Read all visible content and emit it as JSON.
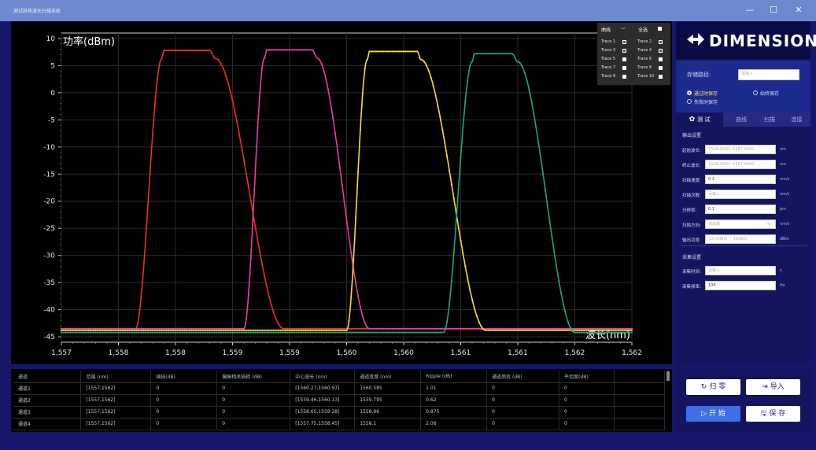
{
  "window": {
    "title": "测试科技波长扫描系统",
    "minimize_glyph": "—",
    "maximize_glyph": "☐",
    "close_glyph": "✕"
  },
  "chart_data": {
    "type": "line",
    "ylabel": "功率(dBm)",
    "xlabel": "波长(nm)",
    "xlim": [
      1557,
      1562
    ],
    "ylim": [
      -46,
      11
    ],
    "x_ticks": [
      1557,
      1557.5,
      1558,
      1558.5,
      1559,
      1559.5,
      1560,
      1560.5,
      1561,
      1561.5,
      1562
    ],
    "x_tick_labels": [
      "1,557",
      "1,558",
      "1,558",
      "1,559",
      "1,559",
      "1,560",
      "1,560",
      "1,561",
      "1,561",
      "1,562",
      "1,562"
    ],
    "y_ticks": [
      10,
      5,
      0,
      -5,
      -10,
      -15,
      -20,
      -25,
      -30,
      -35,
      -40,
      -45
    ],
    "y_tick_labels": [
      "10",
      "5",
      "0",
      "-5",
      "-10",
      "-15",
      "-20",
      "-25",
      "-30",
      "-35",
      "-40",
      "-45"
    ],
    "grid": true,
    "series": [
      {
        "color": "#e8302a",
        "peak": 7.8,
        "floor": -43.5,
        "rise_start": 1557.65,
        "rise_end": 1557.88,
        "top_start": 1557.9,
        "top_end": 1558.3,
        "fall_start": 1558.35,
        "fall_end": 1558.95
      },
      {
        "color": "#e83da0",
        "peak": 7.9,
        "floor": -43.5,
        "rise_start": 1558.6,
        "rise_end": 1558.78,
        "top_start": 1558.8,
        "top_end": 1559.2,
        "fall_start": 1559.24,
        "fall_end": 1559.7
      },
      {
        "color": "#f1de32",
        "peak": 7.6,
        "floor": -43.8,
        "rise_start": 1559.5,
        "rise_end": 1559.68,
        "top_start": 1559.7,
        "top_end": 1560.12,
        "fall_start": 1560.15,
        "fall_end": 1560.72
      },
      {
        "color": "#1fa57a",
        "peak": 7.2,
        "floor": -44.2,
        "rise_start": 1560.35,
        "rise_end": 1560.6,
        "top_start": 1560.62,
        "top_end": 1560.95,
        "fall_start": 1561.0,
        "fall_end": 1561.5
      }
    ]
  },
  "trace_legend": {
    "header_left": "曲线",
    "header_chevron": "﹀",
    "header_right": "全选",
    "traces": [
      {
        "label": "Trace 1",
        "checked": true
      },
      {
        "label": "Trace 2",
        "checked": true
      },
      {
        "label": "Trace 3",
        "checked": true
      },
      {
        "label": "Trace 4",
        "checked": true
      },
      {
        "label": "Trace 5",
        "checked": false
      },
      {
        "label": "Trace 6",
        "checked": false
      },
      {
        "label": "Trace 7",
        "checked": false
      },
      {
        "label": "Trace 8",
        "checked": false
      },
      {
        "label": "Trace 9",
        "checked": false
      },
      {
        "label": "Trace 10",
        "checked": false
      }
    ]
  },
  "brand": {
    "name": "DIMENSION"
  },
  "storage": {
    "path_label": "存储路径:",
    "path_placeholder": "请输入",
    "radio_pass": "通过时保存",
    "radio_always": "始终保存",
    "radio_fail": "失败时保存",
    "selected": "pass"
  },
  "tabs": [
    "测 试",
    "曲线",
    "扫描",
    "连接"
  ],
  "output_settings": {
    "title": "输出设置",
    "rows": [
      {
        "label": "起始波长:",
        "value": "",
        "placeholder": "1528.0000~1567.0000",
        "unit": "nm"
      },
      {
        "label": "终止波长:",
        "value": "",
        "placeholder": "1528.0000~1567.0000",
        "unit": "nm"
      },
      {
        "label": "扫描速度:",
        "value": "0.1",
        "placeholder": "",
        "unit": "nm/s"
      },
      {
        "label": "扫描次数:",
        "value": "",
        "placeholder": "请输入",
        "unit": "nm/s"
      },
      {
        "label": "分辨率:",
        "value": "0.1",
        "placeholder": "",
        "unit": "pm"
      },
      {
        "label": "扫描方向:",
        "value": "",
        "placeholder": "请选择",
        "unit": "nm/s"
      },
      {
        "label": "输出功率:",
        "value": "",
        "placeholder": "-10.0dBm ~ 10dBm",
        "unit": "dBm"
      }
    ]
  },
  "acquisition_settings": {
    "title": "采集设置",
    "rows": [
      {
        "label": "采集时间:",
        "value": "",
        "placeholder": "请输入",
        "unit": "s"
      },
      {
        "label": "采集频率:",
        "value": "10K",
        "placeholder": "",
        "unit": "Hz"
      }
    ]
  },
  "table": {
    "headers": [
      "通道",
      "范围 (nm)",
      "插损(dB)",
      "偏振相关损耗 (dB)",
      "中心波长 (nm)",
      "通道宽度 (nm)",
      "Ripple (dB)",
      "通道串扰 (dB)",
      "平坦度(dB)",
      ""
    ],
    "rows": [
      [
        "通道1",
        "[1557,1562]",
        "0",
        "0",
        "[1560.27,1560.97]",
        "1560.585",
        "1.01",
        "0",
        "0",
        ""
      ],
      [
        "通道2",
        "[1557,1562]",
        "0",
        "0",
        "[1559.46,1560.13]",
        "1559.795",
        "0.62",
        "0",
        "0",
        ""
      ],
      [
        "通道3",
        "[1557,1562]",
        "0",
        "0",
        "[1558.65,1559.28]",
        "1558.96",
        "0.875",
        "0",
        "0",
        ""
      ],
      [
        "通道4",
        "[1557,1562]",
        "0",
        "0",
        "[1557.75,1558.45]",
        "1558.1",
        "2.06",
        "0",
        "0",
        ""
      ]
    ]
  },
  "actions": {
    "reset": "归 零",
    "import": "导入",
    "start": "开 始",
    "save": "保 存",
    "reset_glyph": "↻",
    "import_glyph": "⇥",
    "start_glyph": "▷",
    "save_glyph": "🖫"
  }
}
